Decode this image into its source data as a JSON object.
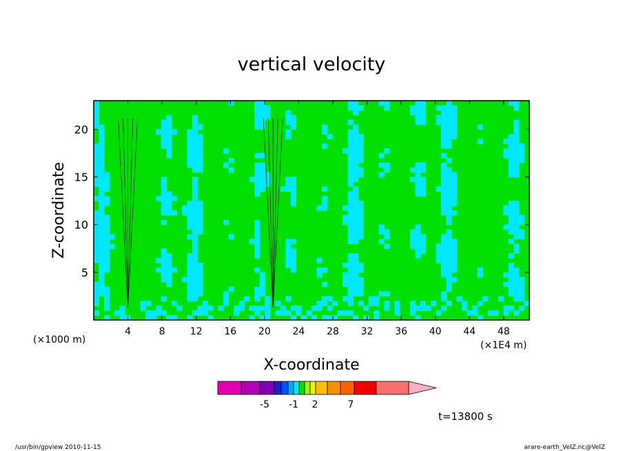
{
  "chart_data": {
    "type": "heatmap",
    "title": "vertical velocity",
    "xlabel": "X-coordinate",
    "ylabel": "Z-coordinate",
    "x_unit_left": "(×1000 m)",
    "x_unit_right": "(×1E4 m)",
    "xlim": [
      0,
      51
    ],
    "ylim": [
      0,
      23
    ],
    "x_ticks": [
      4,
      8,
      12,
      16,
      20,
      24,
      28,
      32,
      36,
      40,
      44,
      48
    ],
    "y_ticks": [
      5,
      10,
      15,
      20
    ],
    "plumes_x": [
      4,
      21
    ],
    "colorbar": {
      "colors": [
        "#e000b0",
        "#b000b8",
        "#8000b0",
        "#2020c0",
        "#0050ff",
        "#00a8ff",
        "#00e8ff",
        "#00e000",
        "#a0f000",
        "#f0f000",
        "#f8c000",
        "#f89000",
        "#f86000",
        "#f00000",
        "#f87070",
        "#f8b0c0"
      ],
      "labels": [
        "-5",
        "-1",
        "2",
        "7"
      ]
    },
    "time_label": "t=13800 s",
    "footer_left": "/usr/bin/gpview   2010-11-15",
    "footer_right": "arare-earth_VelZ.nc@VelZ"
  }
}
